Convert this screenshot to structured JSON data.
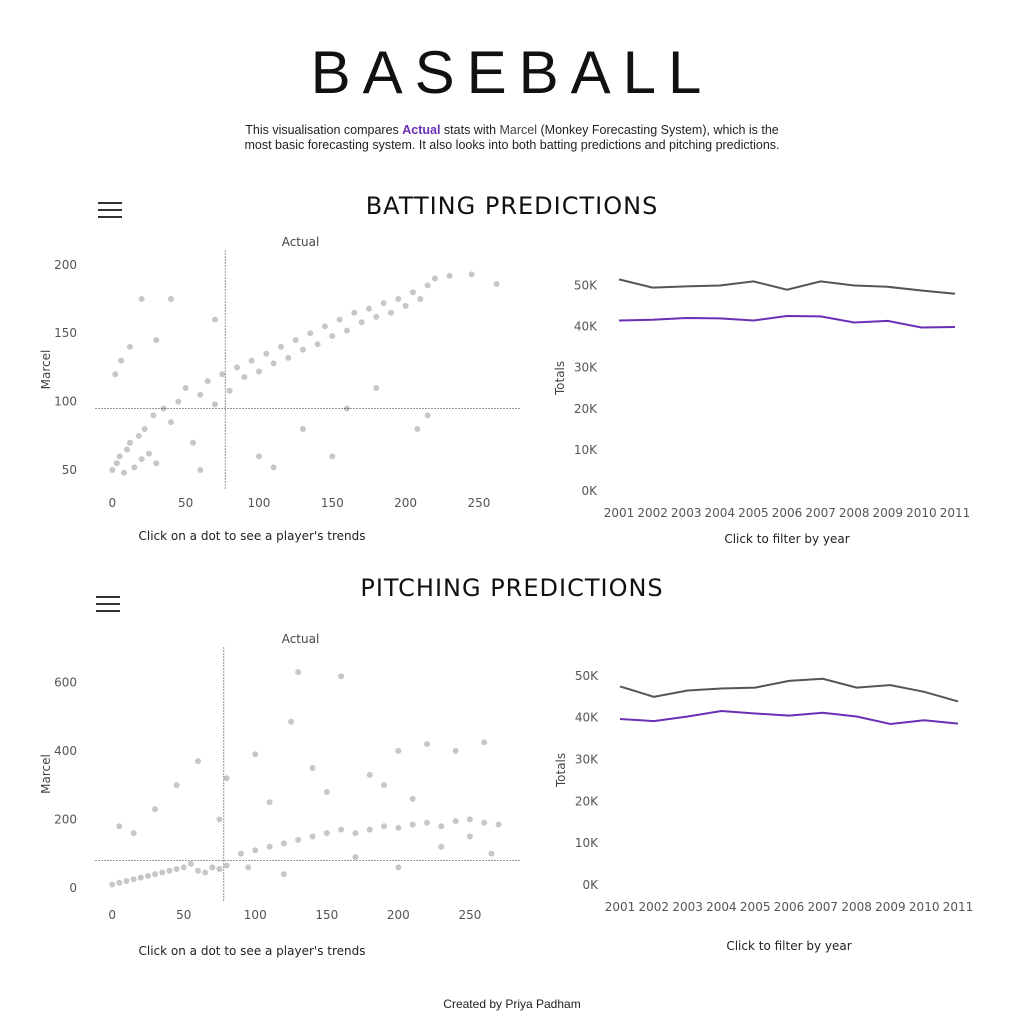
{
  "page": {
    "title": "BASEBALL",
    "intro": {
      "before": "This visualisation compares ",
      "actual": "Actual",
      "middle": " stats with ",
      "marcel": "Marcel",
      "after_line1": " (Monkey Forecasting System), which is the",
      "line2": "most basic forecasting system. It also looks into both batting predictions and pitching predictions."
    },
    "footer": "Created by Priya Padham"
  },
  "colors": {
    "actual": "#6a2fb5",
    "marcel": "#555555",
    "dots": "#000000"
  },
  "icons": {
    "menu": "hamburger-menu-icon"
  },
  "chart_data": [
    {
      "id": "batting-scatter",
      "type": "scatter",
      "section": "BATTING PREDICTIONS",
      "title": "Actual",
      "ylabel": "Marcel",
      "xlabel": "Click on a dot to see a player's trends",
      "xlim": [
        -5,
        278
      ],
      "ylim": [
        42,
        205
      ],
      "xticks": [
        0,
        50,
        100,
        150,
        200,
        250
      ],
      "yticks": [
        50,
        100,
        150,
        200
      ],
      "reference_lines": {
        "x": 77,
        "y": 95
      },
      "points": [
        [
          0,
          50
        ],
        [
          3,
          55
        ],
        [
          5,
          60
        ],
        [
          8,
          48
        ],
        [
          10,
          65
        ],
        [
          12,
          70
        ],
        [
          15,
          52
        ],
        [
          18,
          75
        ],
        [
          20,
          58
        ],
        [
          22,
          80
        ],
        [
          25,
          62
        ],
        [
          28,
          90
        ],
        [
          30,
          55
        ],
        [
          35,
          95
        ],
        [
          40,
          85
        ],
        [
          45,
          100
        ],
        [
          50,
          110
        ],
        [
          55,
          70
        ],
        [
          60,
          105
        ],
        [
          65,
          115
        ],
        [
          70,
          98
        ],
        [
          75,
          120
        ],
        [
          80,
          108
        ],
        [
          85,
          125
        ],
        [
          90,
          118
        ],
        [
          95,
          130
        ],
        [
          100,
          122
        ],
        [
          105,
          135
        ],
        [
          110,
          128
        ],
        [
          115,
          140
        ],
        [
          120,
          132
        ],
        [
          125,
          145
        ],
        [
          130,
          138
        ],
        [
          135,
          150
        ],
        [
          140,
          142
        ],
        [
          145,
          155
        ],
        [
          150,
          148
        ],
        [
          155,
          160
        ],
        [
          160,
          152
        ],
        [
          165,
          165
        ],
        [
          170,
          158
        ],
        [
          175,
          168
        ],
        [
          180,
          162
        ],
        [
          185,
          172
        ],
        [
          190,
          165
        ],
        [
          195,
          175
        ],
        [
          200,
          170
        ],
        [
          205,
          180
        ],
        [
          210,
          175
        ],
        [
          215,
          185
        ],
        [
          220,
          190
        ],
        [
          230,
          192
        ],
        [
          245,
          193
        ],
        [
          262,
          186
        ],
        [
          208,
          80
        ],
        [
          215,
          90
        ],
        [
          30,
          145
        ],
        [
          20,
          175
        ],
        [
          40,
          175
        ],
        [
          70,
          160
        ],
        [
          100,
          60
        ],
        [
          130,
          80
        ],
        [
          160,
          95
        ],
        [
          180,
          110
        ],
        [
          60,
          50
        ],
        [
          110,
          52
        ],
        [
          150,
          60
        ],
        [
          2,
          120
        ],
        [
          6,
          130
        ],
        [
          12,
          140
        ]
      ]
    },
    {
      "id": "batting-line",
      "type": "line",
      "section": "BATTING PREDICTIONS",
      "title": "",
      "ylabel": "Totals",
      "xlabel": "Click to filter by year",
      "categories": [
        "2001",
        "2002",
        "2003",
        "2004",
        "2005",
        "2006",
        "2007",
        "2008",
        "2009",
        "2010",
        "2011"
      ],
      "ylim": [
        0,
        55000
      ],
      "yticks": [
        0,
        10000,
        20000,
        30000,
        40000,
        50000
      ],
      "ytick_labels": [
        "0K",
        "10K",
        "20K",
        "30K",
        "40K",
        "50K"
      ],
      "series": [
        {
          "key": "marcel",
          "values": [
            51500,
            49500,
            49800,
            50000,
            51000,
            49000,
            51000,
            50000,
            49700,
            48800,
            48000
          ]
        },
        {
          "key": "actual",
          "values": [
            41500,
            41700,
            42100,
            42000,
            41500,
            42600,
            42500,
            41000,
            41400,
            39800,
            39900
          ]
        }
      ]
    },
    {
      "id": "pitching-scatter",
      "type": "scatter",
      "section": "PITCHING PREDICTIONS",
      "title": "Actual",
      "ylabel": "Marcel",
      "xlabel": "Click on a dot to see a player's trends",
      "xlim": [
        -5,
        285
      ],
      "ylim": [
        -15,
        680
      ],
      "xticks": [
        0,
        50,
        100,
        150,
        200,
        250
      ],
      "yticks": [
        0,
        200,
        400,
        600
      ],
      "reference_lines": {
        "x": 78,
        "y": 80
      },
      "points": [
        [
          0,
          10
        ],
        [
          5,
          15
        ],
        [
          10,
          20
        ],
        [
          15,
          25
        ],
        [
          20,
          30
        ],
        [
          25,
          35
        ],
        [
          30,
          40
        ],
        [
          35,
          45
        ],
        [
          40,
          50
        ],
        [
          45,
          55
        ],
        [
          50,
          60
        ],
        [
          55,
          70
        ],
        [
          60,
          50
        ],
        [
          65,
          45
        ],
        [
          70,
          60
        ],
        [
          75,
          55
        ],
        [
          80,
          65
        ],
        [
          90,
          100
        ],
        [
          100,
          110
        ],
        [
          110,
          120
        ],
        [
          120,
          130
        ],
        [
          130,
          140
        ],
        [
          140,
          150
        ],
        [
          150,
          160
        ],
        [
          160,
          170
        ],
        [
          170,
          160
        ],
        [
          180,
          170
        ],
        [
          190,
          180
        ],
        [
          200,
          175
        ],
        [
          210,
          185
        ],
        [
          220,
          190
        ],
        [
          230,
          180
        ],
        [
          240,
          195
        ],
        [
          250,
          200
        ],
        [
          260,
          190
        ],
        [
          270,
          185
        ],
        [
          130,
          630
        ],
        [
          160,
          618
        ],
        [
          125,
          485
        ],
        [
          100,
          390
        ],
        [
          80,
          320
        ],
        [
          60,
          370
        ],
        [
          140,
          350
        ],
        [
          180,
          330
        ],
        [
          200,
          400
        ],
        [
          220,
          420
        ],
        [
          240,
          400
        ],
        [
          260,
          425
        ],
        [
          110,
          250
        ],
        [
          150,
          280
        ],
        [
          190,
          300
        ],
        [
          210,
          260
        ],
        [
          5,
          180
        ],
        [
          15,
          160
        ],
        [
          30,
          230
        ],
        [
          45,
          300
        ],
        [
          75,
          200
        ],
        [
          95,
          60
        ],
        [
          120,
          40
        ],
        [
          170,
          90
        ],
        [
          200,
          60
        ],
        [
          230,
          120
        ],
        [
          250,
          150
        ],
        [
          265,
          100
        ]
      ]
    },
    {
      "id": "pitching-line",
      "type": "line",
      "section": "PITCHING PREDICTIONS",
      "title": "",
      "ylabel": "Totals",
      "xlabel": "Click to filter by year",
      "categories": [
        "2001",
        "2002",
        "2003",
        "2004",
        "2005",
        "2006",
        "2007",
        "2008",
        "2009",
        "2010",
        "2011"
      ],
      "ylim": [
        0,
        55000
      ],
      "yticks": [
        0,
        10000,
        20000,
        30000,
        40000,
        50000
      ],
      "ytick_labels": [
        "0K",
        "10K",
        "20K",
        "30K",
        "40K",
        "50K"
      ],
      "series": [
        {
          "key": "marcel",
          "values": [
            47500,
            45000,
            46500,
            47000,
            47200,
            48800,
            49300,
            47200,
            47800,
            46200,
            43900
          ]
        },
        {
          "key": "actual",
          "values": [
            39700,
            39200,
            40300,
            41600,
            41000,
            40500,
            41200,
            40300,
            38500,
            39400,
            38600
          ]
        }
      ]
    }
  ]
}
